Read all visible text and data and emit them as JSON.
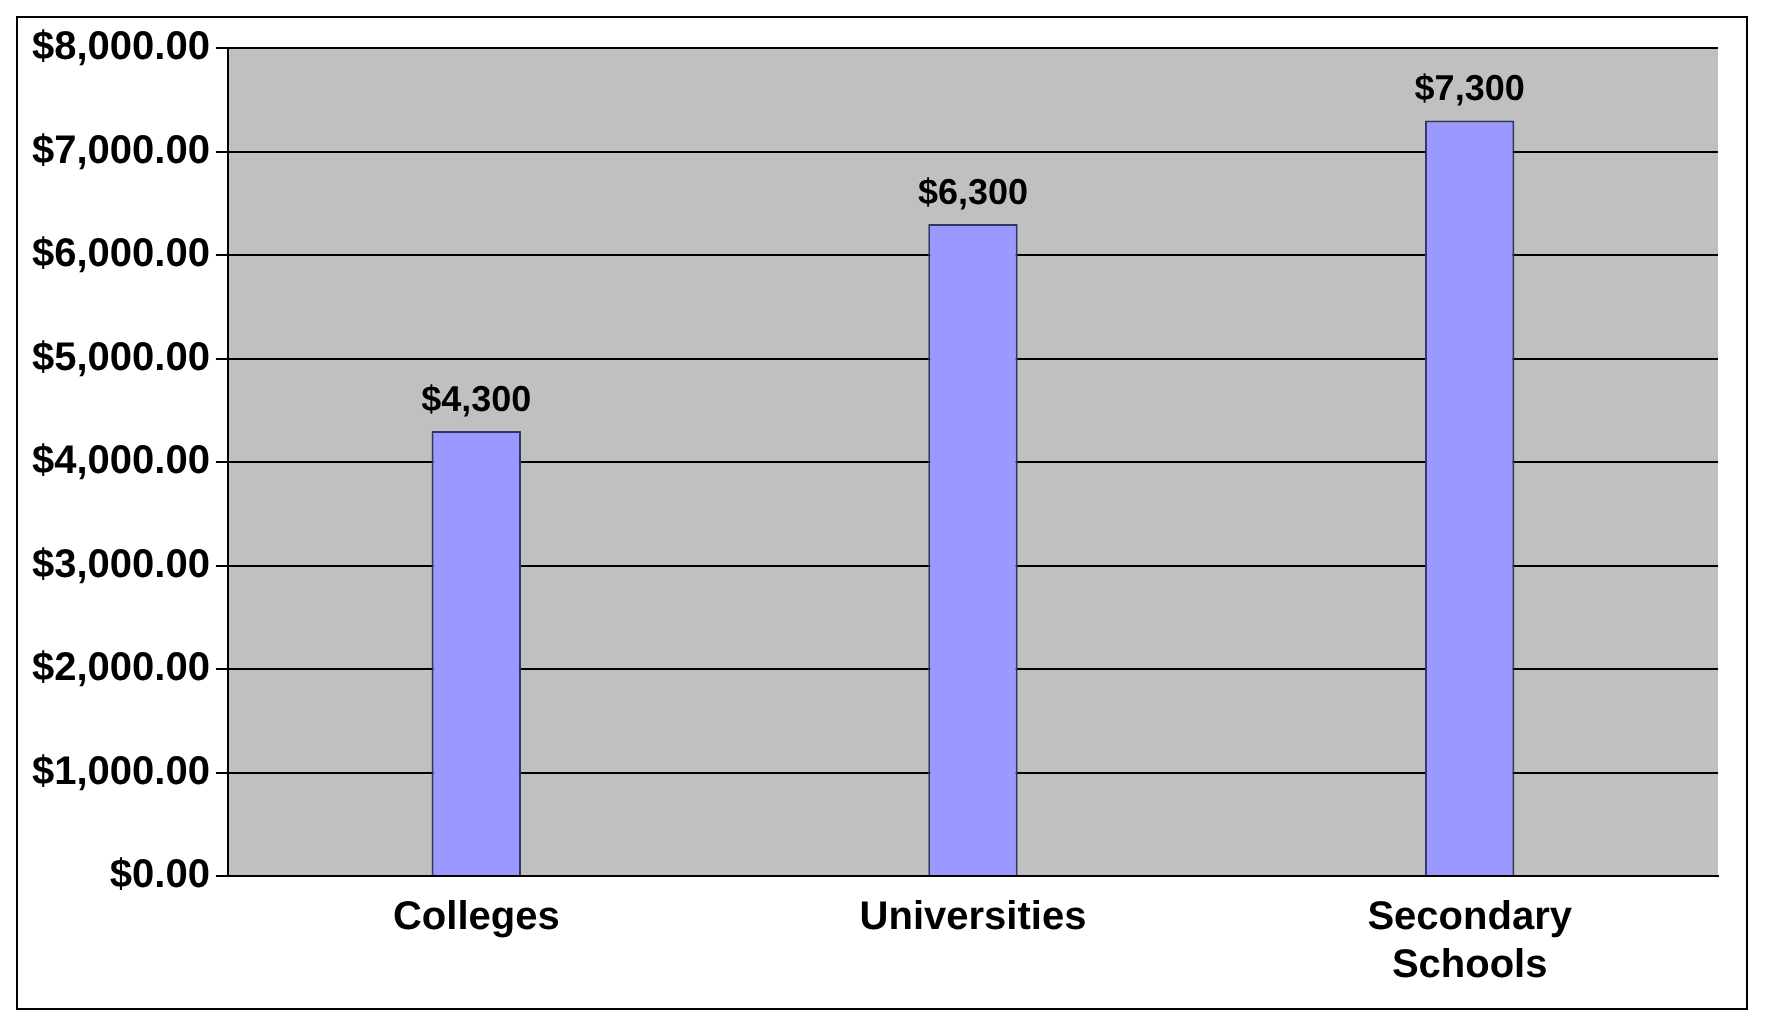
{
  "chart_data": {
    "type": "bar",
    "categories": [
      "Colleges",
      "Universities",
      "Secondary Schools"
    ],
    "values": [
      4300,
      6300,
      7300
    ],
    "color": "#9999ff",
    "value_labels": [
      "$4,300",
      "$6,300",
      "$7,300"
    ],
    "ylim": [
      0,
      8000
    ],
    "yticks": [
      {
        "value": 0,
        "label": "$0.00"
      },
      {
        "value": 1000,
        "label": "$1,000.00"
      },
      {
        "value": 2000,
        "label": "$2,000.00"
      },
      {
        "value": 3000,
        "label": "$3,000.00"
      },
      {
        "value": 4000,
        "label": "$4,000.00"
      },
      {
        "value": 5000,
        "label": "$5,000.00"
      },
      {
        "value": 6000,
        "label": "$6,000.00"
      },
      {
        "value": 7000,
        "label": "$7,000.00"
      },
      {
        "value": 8000,
        "label": "$8,000.00"
      }
    ],
    "grid": "y",
    "legend": false
  }
}
